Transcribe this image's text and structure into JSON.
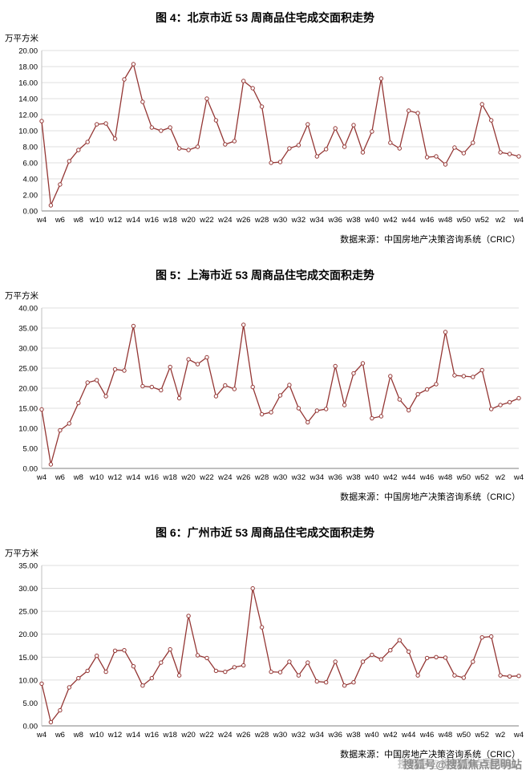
{
  "watermark": {
    "text": "搜狐号@搜狐焦点昆明站"
  },
  "chart_data": [
    {
      "type": "line",
      "title": "图 4：北京市近 53 周商品住宅成交面积走势",
      "ylabel": "万平方米",
      "source": "数据来源：中国房地产决策咨询系统（CRIC）",
      "ylim": [
        0,
        20
      ],
      "ytick_step": 2,
      "grid": true,
      "legend": "none",
      "line_color": "#943634",
      "x_tick_every": 2,
      "x_tick_labels": [
        "w4",
        "w6",
        "w8",
        "w10",
        "w12",
        "w14",
        "w16",
        "w18",
        "w20",
        "w22",
        "w24",
        "w26",
        "w28",
        "w30",
        "w32",
        "w34",
        "w36",
        "w38",
        "w40",
        "w42",
        "w44",
        "w46",
        "w48",
        "w50",
        "w52",
        "w2",
        "w4"
      ],
      "values": [
        11.2,
        0.7,
        3.3,
        6.2,
        7.6,
        8.6,
        10.8,
        10.9,
        9.0,
        16.4,
        18.3,
        13.6,
        10.4,
        10.0,
        10.4,
        7.8,
        7.6,
        8.0,
        14.0,
        11.3,
        8.3,
        8.7,
        16.2,
        15.3,
        13.0,
        6.0,
        6.1,
        7.8,
        8.2,
        10.8,
        6.8,
        7.7,
        10.3,
        8.0,
        10.7,
        7.3,
        9.9,
        16.5,
        8.5,
        7.8,
        12.5,
        12.2,
        6.7,
        6.8,
        5.8,
        7.9,
        7.2,
        8.5,
        13.3,
        11.3,
        7.3,
        7.1,
        6.8
      ]
    },
    {
      "type": "line",
      "title": "图 5：上海市近 53 周商品住宅成交面积走势",
      "ylabel": "万平方米",
      "source": "数据来源：中国房地产决策咨询系统（CRIC）",
      "ylim": [
        0,
        40
      ],
      "ytick_step": 5,
      "grid": true,
      "legend": "none",
      "line_color": "#943634",
      "x_tick_every": 2,
      "x_tick_labels": [
        "w4",
        "w6",
        "w8",
        "w10",
        "w12",
        "w14",
        "w16",
        "w18",
        "w20",
        "w22",
        "w24",
        "w26",
        "w28",
        "w30",
        "w32",
        "w34",
        "w36",
        "w38",
        "w40",
        "w42",
        "w44",
        "w46",
        "w48",
        "w50",
        "w52",
        "w2",
        "w4"
      ],
      "values": [
        14.7,
        1.0,
        9.5,
        11.2,
        16.3,
        21.4,
        22.0,
        18.0,
        24.7,
        24.4,
        35.5,
        20.5,
        20.3,
        19.5,
        25.3,
        17.5,
        27.2,
        26.0,
        27.7,
        18.0,
        20.7,
        19.8,
        35.8,
        20.3,
        13.5,
        14.0,
        18.2,
        20.8,
        15.0,
        11.5,
        14.4,
        14.8,
        25.5,
        15.8,
        23.7,
        26.2,
        12.5,
        13.0,
        23.0,
        17.2,
        14.5,
        18.5,
        19.7,
        21.0,
        34.0,
        23.2,
        23.0,
        22.8,
        24.5,
        14.8,
        15.8,
        16.5,
        17.5
      ]
    },
    {
      "type": "line",
      "title": "图 6：广州市近 53 周商品住宅成交面积走势",
      "ylabel": "万平方米",
      "source": "数据来源：中国房地产决策咨询系统（CRIC）",
      "ylim": [
        0,
        35
      ],
      "ytick_step": 5,
      "grid": true,
      "legend": "none",
      "line_color": "#943634",
      "x_tick_every": 2,
      "x_tick_labels": [
        "w4",
        "w6",
        "w8",
        "w10",
        "w12",
        "w14",
        "w16",
        "w18",
        "w20",
        "w22",
        "w24",
        "w26",
        "w28",
        "w30",
        "w32",
        "w34",
        "w36",
        "w38",
        "w40",
        "w42",
        "w44",
        "w46",
        "w48",
        "w50",
        "w52",
        "w2",
        "w4"
      ],
      "values": [
        9.2,
        0.8,
        3.4,
        8.4,
        10.4,
        12.0,
        15.3,
        11.8,
        16.4,
        16.5,
        13.0,
        8.8,
        10.4,
        13.8,
        16.7,
        11.0,
        24.0,
        15.4,
        14.8,
        12.0,
        11.8,
        12.8,
        13.2,
        30.0,
        21.5,
        11.8,
        11.7,
        14.0,
        11.0,
        13.8,
        9.7,
        9.5,
        14.0,
        8.8,
        9.5,
        14.0,
        15.5,
        14.5,
        16.5,
        18.7,
        16.2,
        11.0,
        14.8,
        15.0,
        14.9,
        11.0,
        10.5,
        14.0,
        19.3,
        19.5,
        11.0,
        10.8,
        10.9
      ]
    }
  ]
}
